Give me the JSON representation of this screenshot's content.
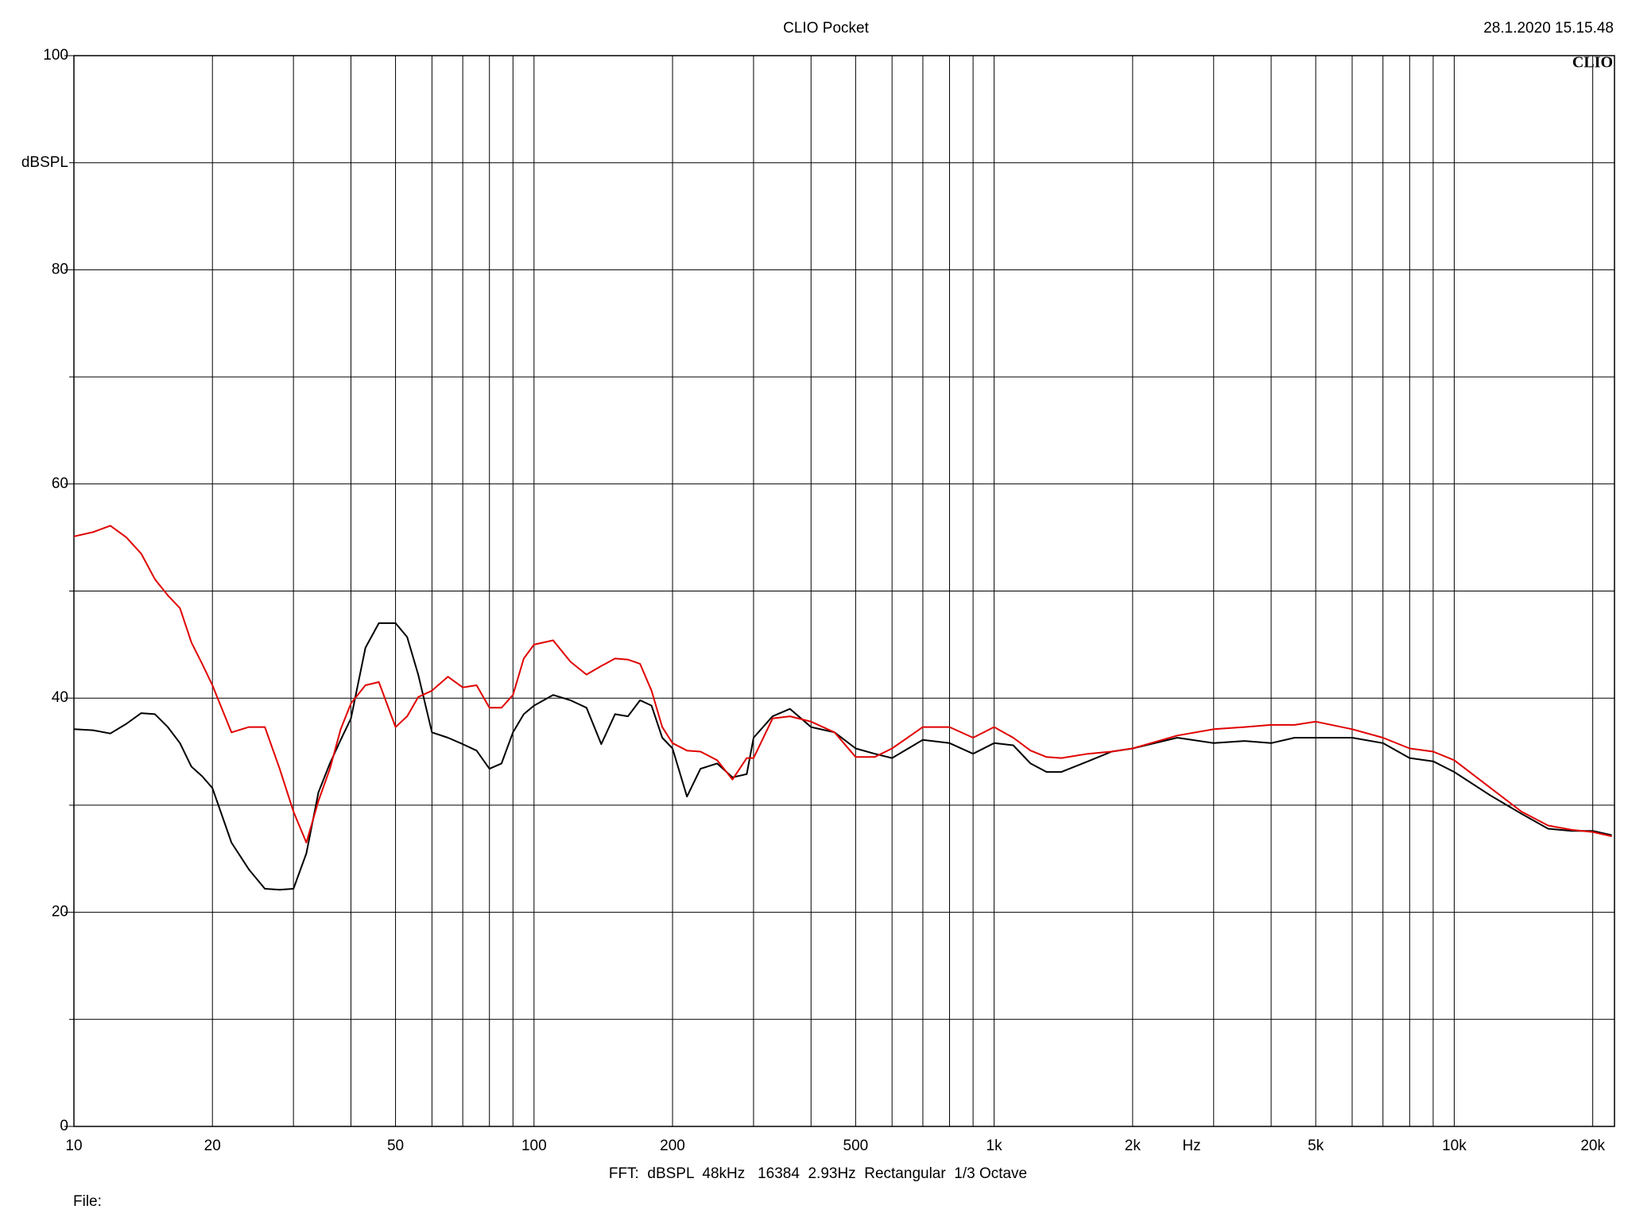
{
  "chart_data": {
    "type": "line",
    "title": "CLIO Pocket",
    "timestamp": "28.1.2020 15.15.48",
    "logo": "CLIO",
    "y_label": "dBSPL",
    "x_label": "Hz",
    "footer": "FFT:  dBSPL  48kHz   16384  2.93Hz  Rectangular  1/3 Octave",
    "file_label": "File:",
    "log_x": true,
    "grid": true,
    "xlim": [
      10,
      22300
    ],
    "ylim": [
      0,
      100
    ],
    "xticks": [
      10,
      20,
      50,
      100,
      200,
      500,
      {
        "value": 1000,
        "label": "1k"
      },
      {
        "value": 2000,
        "label": "2k"
      },
      {
        "value": 5000,
        "label": "5k"
      },
      {
        "value": 10000,
        "label": "10k"
      },
      {
        "value": 20000,
        "label": "20k"
      }
    ],
    "xgrid": [
      30,
      40,
      60,
      70,
      80,
      90,
      300,
      400,
      600,
      700,
      800,
      900,
      3000,
      4000,
      6000,
      7000,
      8000,
      9000
    ],
    "yticks": [
      0,
      20,
      40,
      60,
      80,
      100
    ],
    "ygrid": [
      10,
      30,
      50,
      70,
      90
    ],
    "x": [
      10,
      11,
      12,
      13,
      14,
      15,
      16,
      17,
      18,
      19,
      20,
      22,
      24,
      26,
      28,
      30,
      32,
      34,
      36,
      38,
      40,
      43,
      46,
      50,
      53,
      56,
      60,
      65,
      70,
      75,
      80,
      85,
      90,
      95,
      100,
      110,
      120,
      130,
      140,
      150,
      160,
      170,
      180,
      190,
      200,
      215,
      230,
      250,
      270,
      290,
      300,
      330,
      360,
      400,
      450,
      500,
      550,
      600,
      700,
      800,
      900,
      1000,
      1100,
      1200,
      1300,
      1400,
      1600,
      1800,
      2000,
      2500,
      3000,
      3500,
      4000,
      4500,
      5000,
      6000,
      7000,
      8000,
      9000,
      10000,
      12000,
      14000,
      16000,
      18000,
      20000,
      22000
    ],
    "series": [
      {
        "color": "#000000",
        "values": [
          37.1,
          37.0,
          36.7,
          37.6,
          38.6,
          38.5,
          37.3,
          35.8,
          33.6,
          32.7,
          31.6,
          26.5,
          24.0,
          22.2,
          22.1,
          22.2,
          25.5,
          31.2,
          33.9,
          36.1,
          38.1,
          44.7,
          47.0,
          47.0,
          45.7,
          42.2,
          36.8,
          36.3,
          35.7,
          35.1,
          33.4,
          33.9,
          36.8,
          38.5,
          39.3,
          40.3,
          39.8,
          39.1,
          35.7,
          38.5,
          38.3,
          39.8,
          39.3,
          36.3,
          35.3,
          30.8,
          33.4,
          33.9,
          32.6,
          32.9,
          36.3,
          38.3,
          39.0,
          37.3,
          36.8,
          35.3,
          34.8,
          34.4,
          36.1,
          35.8,
          34.8,
          35.8,
          35.6,
          33.9,
          33.1,
          33.1,
          34.1,
          35.0,
          35.3,
          36.3,
          35.8,
          36.0,
          35.8,
          36.3,
          36.3,
          36.3,
          35.8,
          34.4,
          34.1,
          33.1,
          30.9,
          29.2,
          27.8,
          27.6,
          27.6,
          27.2
        ]
      },
      {
        "color": "#e00000",
        "values": [
          55.1,
          55.5,
          56.1,
          55.0,
          53.5,
          51.1,
          49.6,
          48.4,
          45.2,
          43.2,
          41.2,
          36.8,
          37.3,
          37.3,
          33.4,
          29.4,
          26.5,
          30.4,
          33.4,
          37.1,
          39.5,
          41.2,
          41.5,
          37.3,
          38.3,
          40.1,
          40.7,
          42.0,
          41.0,
          41.2,
          39.1,
          39.1,
          40.3,
          43.7,
          45.0,
          45.4,
          43.4,
          42.2,
          43.0,
          43.7,
          43.6,
          43.2,
          40.7,
          37.3,
          35.8,
          35.1,
          35.0,
          34.2,
          32.4,
          34.4,
          34.4,
          38.1,
          38.3,
          37.8,
          36.8,
          34.5,
          34.5,
          35.3,
          37.3,
          37.3,
          36.3,
          37.3,
          36.3,
          35.1,
          34.5,
          34.4,
          34.8,
          35.0,
          35.3,
          36.5,
          37.1,
          37.3,
          37.5,
          37.5,
          37.8,
          37.1,
          36.3,
          35.3,
          35.0,
          34.2,
          31.6,
          29.4,
          28.1,
          27.7,
          27.5,
          27.1
        ]
      }
    ]
  }
}
